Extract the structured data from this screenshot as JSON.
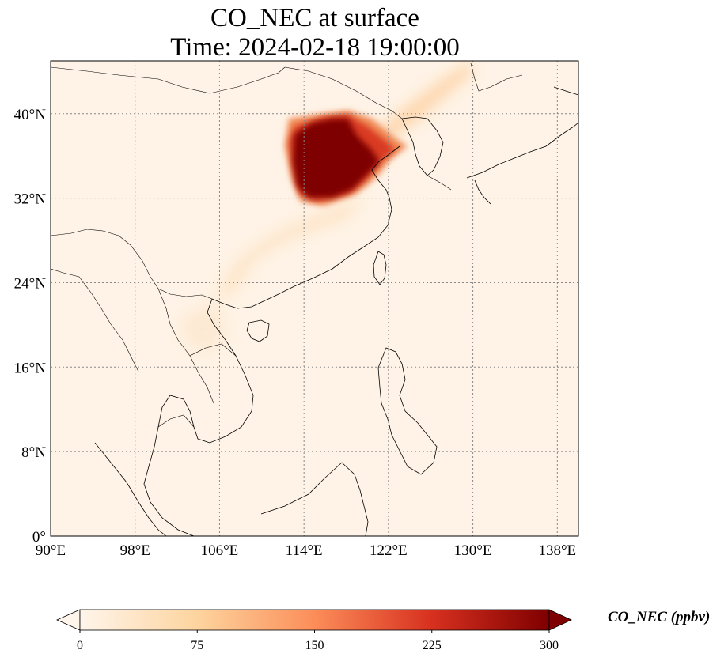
{
  "title": {
    "line1": "CO_NEC at surface",
    "line2": "Time: 2024-02-18 19:00:00"
  },
  "map": {
    "lon_range": [
      90,
      140
    ],
    "lat_range": [
      0,
      45
    ],
    "lon_ticks": [
      {
        "value": 90,
        "label": "90°E"
      },
      {
        "value": 98,
        "label": "98°E"
      },
      {
        "value": 106,
        "label": "106°E"
      },
      {
        "value": 114,
        "label": "114°E"
      },
      {
        "value": 122,
        "label": "122°E"
      },
      {
        "value": 130,
        "label": "130°E"
      },
      {
        "value": 138,
        "label": "138°E"
      }
    ],
    "lat_ticks": [
      {
        "value": 0,
        "label": "0°"
      },
      {
        "value": 8,
        "label": "8°N"
      },
      {
        "value": 16,
        "label": "16°N"
      },
      {
        "value": 24,
        "label": "24°N"
      },
      {
        "value": 32,
        "label": "32°N"
      },
      {
        "value": 40,
        "label": "40°N"
      }
    ],
    "gridlines": true,
    "background_color": "#fff5eb"
  },
  "colorbar": {
    "label": "CO_NEC (ppbv)",
    "min": 0,
    "max": 300,
    "extend": "both",
    "ticks": [
      "0",
      "75",
      "150",
      "225",
      "300"
    ],
    "colormap": "OrRd",
    "colors": [
      "#fff5eb",
      "#fdd49e",
      "#fc8d59",
      "#d7301f",
      "#7f0000"
    ]
  }
}
